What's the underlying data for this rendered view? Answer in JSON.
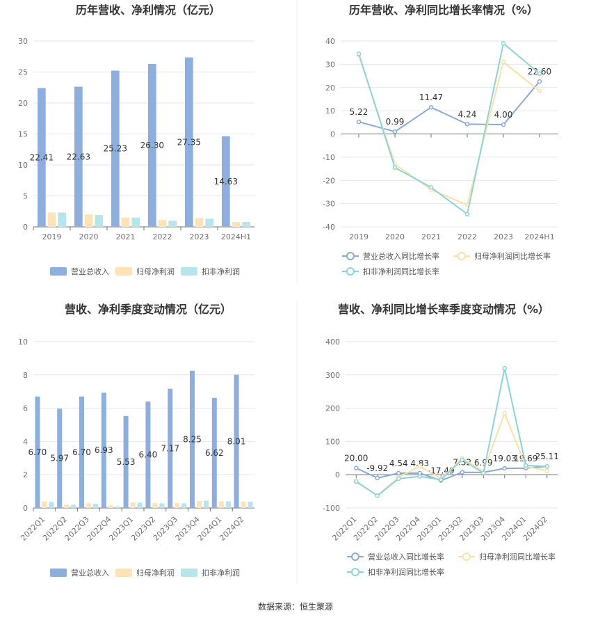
{
  "colors": {
    "revenue": "#8eaedd",
    "net_profit": "#fde3b6",
    "deducted_profit": "#b6e6eb",
    "revenue_line": "#8aa9d6",
    "net_line": "#fbe0a8",
    "deducted_line": "#8dd3da",
    "grid": "#e6e6e6",
    "axis": "#6e7079",
    "divider": "#eeeeee"
  },
  "source": "数据来源：恒生聚源",
  "chart_data": [
    {
      "type": "bar",
      "title": "历年营收、净利情况（亿元）",
      "categories": [
        "2019",
        "2020",
        "2021",
        "2022",
        "2023",
        "2024H1"
      ],
      "ylim": [
        0,
        30
      ],
      "yticks": [
        0,
        5,
        10,
        15,
        20,
        25,
        30
      ],
      "series": [
        {
          "name": "营业总收入",
          "values": [
            22.41,
            22.63,
            25.23,
            26.3,
            27.35,
            14.63
          ],
          "labels": [
            "22.41",
            "22.63",
            "25.23",
            "26.30",
            "27.35",
            "14.63"
          ]
        },
        {
          "name": "归母净利润",
          "values": [
            2.3,
            2.0,
            1.5,
            1.1,
            1.4,
            0.8
          ]
        },
        {
          "name": "扣非净利润",
          "values": [
            2.3,
            1.9,
            1.5,
            1.0,
            1.3,
            0.8
          ]
        }
      ]
    },
    {
      "type": "line",
      "title": "历年营收、净利同比增长率情况（%）",
      "categories": [
        "2019",
        "2020",
        "2021",
        "2022",
        "2023",
        "2024H1"
      ],
      "ylim": [
        -40,
        40
      ],
      "yticks": [
        -40,
        -30,
        -20,
        -10,
        0,
        10,
        20,
        30,
        40
      ],
      "series": [
        {
          "name": "营业总收入同比增长率",
          "values": [
            5.22,
            0.99,
            11.47,
            4.24,
            4.0,
            22.6
          ],
          "labels": [
            "5.22",
            "0.99",
            "11.47",
            "4.24",
            "4.00",
            "22.60"
          ]
        },
        {
          "name": "归母净利润同比增长率",
          "values": [
            34,
            -13,
            -24,
            -30.5,
            31,
            18.5
          ]
        },
        {
          "name": "扣非净利润同比增长率",
          "values": [
            34.5,
            -14.5,
            -23,
            -34.5,
            39,
            26
          ]
        }
      ]
    },
    {
      "type": "bar",
      "title": "营收、净利季度变动情况（亿元）",
      "categories": [
        "2022Q1",
        "2022Q2",
        "2022Q3",
        "2022Q4",
        "2023Q1",
        "2023Q2",
        "2023Q3",
        "2023Q4",
        "2024Q1",
        "2024Q2"
      ],
      "ylim": [
        0,
        10
      ],
      "yticks": [
        0,
        2,
        4,
        6,
        8,
        10
      ],
      "series": [
        {
          "name": "营业总收入",
          "values": [
            6.7,
            5.97,
            6.7,
            6.93,
            5.53,
            6.4,
            7.17,
            8.25,
            6.62,
            8.01
          ],
          "labels": [
            "6.70",
            "5.97",
            "6.70",
            "6.93",
            "5.53",
            "6.40",
            "7.17",
            "8.25",
            "6.62",
            "8.01"
          ]
        },
        {
          "name": "归母净利润",
          "values": [
            0.4,
            0.2,
            0.28,
            0.15,
            0.33,
            0.3,
            0.3,
            0.42,
            0.4,
            0.38
          ]
        },
        {
          "name": "扣非净利润",
          "values": [
            0.38,
            0.19,
            0.25,
            0.1,
            0.32,
            0.28,
            0.28,
            0.44,
            0.4,
            0.37
          ]
        }
      ]
    },
    {
      "type": "line",
      "title": "营收、净利同比增长率季度变动情况（%）",
      "categories": [
        "2022Q1",
        "2022Q2",
        "2022Q3",
        "2022Q4",
        "2023Q1",
        "2023Q2",
        "2023Q3",
        "2023Q4",
        "2024Q1",
        "2024Q2"
      ],
      "ylim": [
        -100,
        400
      ],
      "yticks": [
        -100,
        0,
        100,
        200,
        300,
        400
      ],
      "series": [
        {
          "name": "营业总收入同比增长率",
          "values": [
            20.0,
            -9.92,
            4.54,
            4.83,
            -17.49,
            7.32,
            6.99,
            19.03,
            19.69,
            25.11
          ],
          "labels": [
            "20.00",
            "-9.92",
            "4.54",
            "4.83",
            "-17.49",
            "7.32",
            "6.99",
            "19.03",
            "19.69",
            "25.11"
          ]
        },
        {
          "name": "归母净利润同比增长率",
          "values": [
            -22,
            -62,
            -8,
            25,
            -12,
            50,
            10,
            185,
            25,
            12
          ]
        },
        {
          "name": "扣非净利润同比增长率",
          "values": [
            -20,
            -63,
            -12,
            -5,
            -15,
            45,
            5,
            320,
            28,
            25
          ]
        }
      ]
    }
  ]
}
